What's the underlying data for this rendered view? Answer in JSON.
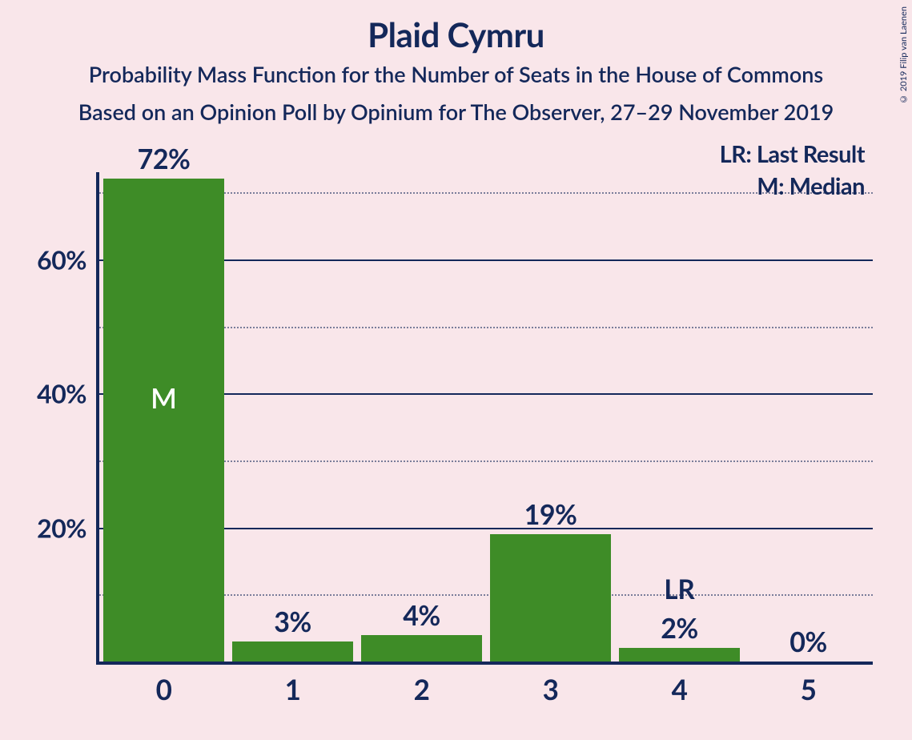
{
  "title": "Plaid Cymru",
  "subtitle1": "Probability Mass Function for the Number of Seats in the House of Commons",
  "subtitle2": "Based on an Opinion Poll by Opinium for The Observer, 27–29 November 2019",
  "copyright": "© 2019 Filip van Laenen",
  "legend": {
    "lr": "LR: Last Result",
    "m": "M: Median"
  },
  "chart": {
    "type": "bar",
    "bar_color": "#3e8c27",
    "background_color": "#f9e6ea",
    "axis_color": "#14285a",
    "text_color": "#14285a",
    "ylim_max": 73,
    "y_major_ticks": [
      20,
      40,
      60
    ],
    "y_minor_ticks": [
      10,
      30,
      50,
      70
    ],
    "categories": [
      "0",
      "1",
      "2",
      "3",
      "4",
      "5"
    ],
    "values": [
      72,
      3,
      4,
      19,
      2,
      0
    ],
    "value_labels": [
      "72%",
      "3%",
      "4%",
      "19%",
      "2%",
      "0%"
    ],
    "median_index": 0,
    "median_label": "M",
    "last_result_index": 4,
    "last_result_label": "LR",
    "y_tick_labels": {
      "20": "20%",
      "40": "40%",
      "60": "60%"
    }
  }
}
